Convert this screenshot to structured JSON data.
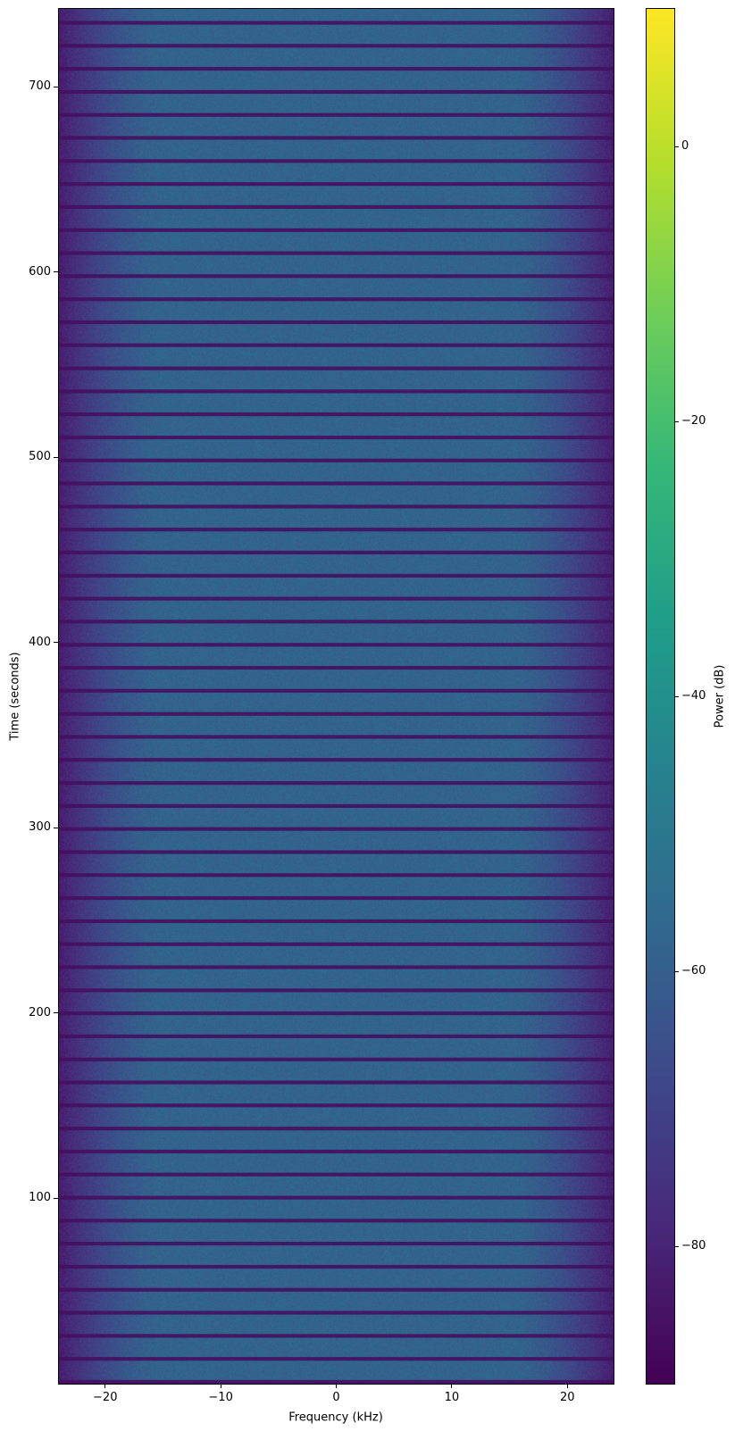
{
  "chart_data": {
    "type": "heatmap",
    "title": "",
    "xlabel": "Frequency (kHz)",
    "ylabel": "Time (seconds)",
    "xlim": [
      -24,
      24
    ],
    "ylim": [
      0,
      742
    ],
    "xticks": [
      -20,
      -10,
      0,
      10,
      20
    ],
    "xtick_labels": [
      "−20",
      "−10",
      "0",
      "10",
      "20"
    ],
    "yticks": [
      100,
      200,
      300,
      400,
      500,
      600,
      700
    ],
    "ytick_labels": [
      "100",
      "200",
      "300",
      "400",
      "500",
      "600",
      "700"
    ],
    "colormap": "viridis",
    "colorbar": {
      "label": "Power (dB)",
      "clim": [
        -90,
        10
      ],
      "ticks": [
        0,
        -20,
        -40,
        -60,
        -80
      ],
      "tick_labels": [
        "0",
        "−20",
        "−40",
        "−60",
        "−80"
      ]
    },
    "signal_level_db": -58,
    "band_edge_level_db": -82,
    "passband_khz": [
      -15,
      15
    ],
    "dropout_level_db": -86,
    "dropout_period_s": 12.43,
    "dropout_duration_s": 2.0,
    "dropout_times_s": [
      1.0,
      13.4,
      25.8,
      38.3,
      50.7,
      63.1,
      75.6,
      88.0,
      100.4,
      112.9,
      125.3,
      137.7,
      150.2,
      162.6,
      175.0,
      187.5,
      199.9,
      212.3,
      224.8,
      237.2,
      249.6,
      262.1,
      274.5,
      286.9,
      299.4,
      311.8,
      324.2,
      336.7,
      349.1,
      361.5,
      374.0,
      386.4,
      398.8,
      411.3,
      423.7,
      436.1,
      448.6,
      461.0,
      473.4,
      485.9,
      498.3,
      510.7,
      523.2,
      535.6,
      548.0,
      560.5,
      572.9,
      585.3,
      597.8,
      610.2,
      622.6,
      635.1,
      647.5,
      659.9,
      672.4,
      684.8,
      697.2,
      709.7,
      722.1,
      734.5
    ]
  }
}
